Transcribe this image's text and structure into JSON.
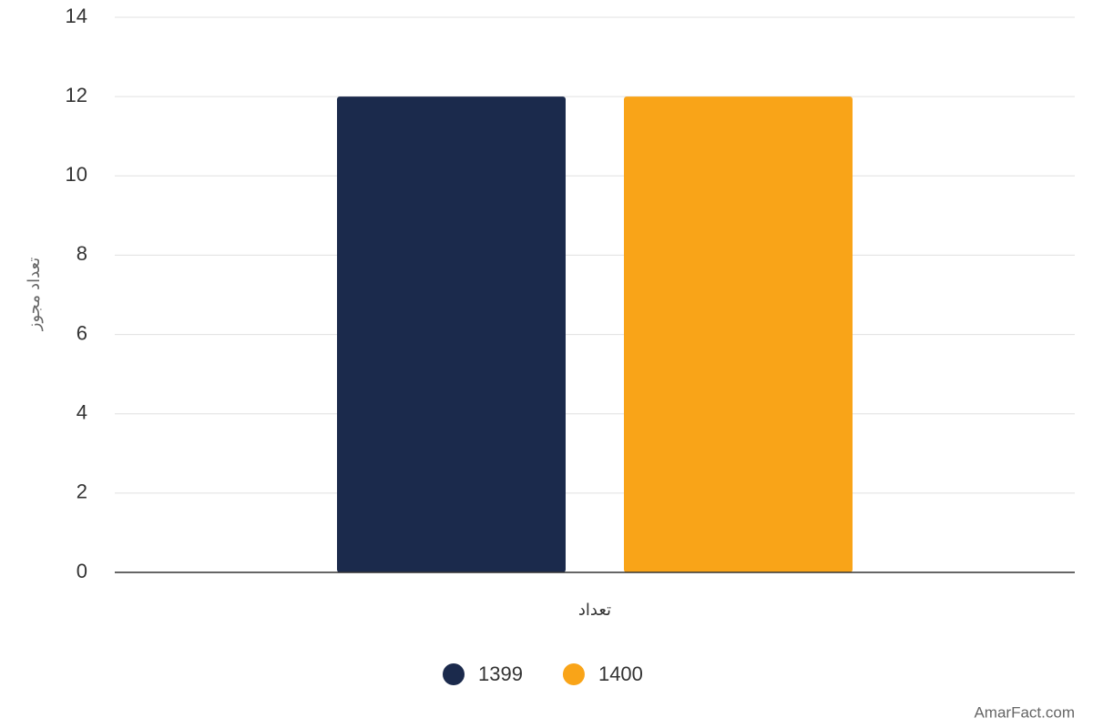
{
  "chart_data": {
    "type": "bar",
    "y_label": "تعداد مجوز",
    "categories": [
      "تعداد"
    ],
    "series": [
      {
        "name": "1399",
        "color": "#1b2a4c",
        "values": [
          12
        ]
      },
      {
        "name": "1400",
        "color": "#f9a418",
        "values": [
          12
        ]
      }
    ],
    "ylim": [
      0,
      14
    ],
    "yticks": [
      0,
      2,
      4,
      6,
      8,
      10,
      12,
      14
    ],
    "grid": true,
    "legend": "bottom",
    "credit": "AmarFact.com"
  }
}
